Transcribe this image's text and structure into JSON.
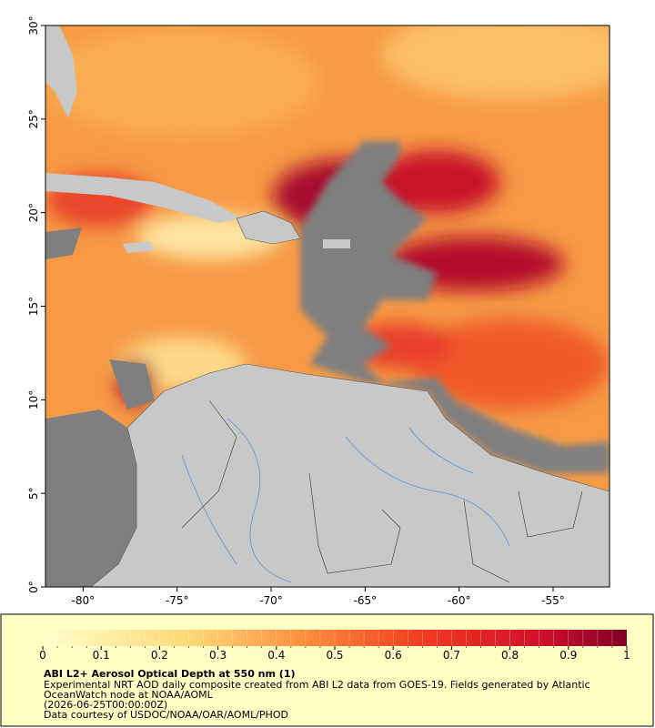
{
  "map": {
    "xlim": [
      -82,
      -52
    ],
    "ylim": [
      0,
      30
    ],
    "xticks": [
      {
        "value": -80,
        "label": "-80°"
      },
      {
        "value": -75,
        "label": "-75°"
      },
      {
        "value": -70,
        "label": "-70°"
      },
      {
        "value": -65,
        "label": "-65°"
      },
      {
        "value": -60,
        "label": "-60°"
      },
      {
        "value": -55,
        "label": "-55°"
      }
    ],
    "yticks": [
      {
        "value": 0,
        "label": "0°"
      },
      {
        "value": 5,
        "label": "5°"
      },
      {
        "value": 10,
        "label": "10°"
      },
      {
        "value": 15,
        "label": "15°"
      },
      {
        "value": 20,
        "label": "20°"
      },
      {
        "value": 25,
        "label": "25°"
      },
      {
        "value": 30,
        "label": "30°"
      }
    ]
  },
  "colorbar": {
    "range": [
      0,
      1
    ],
    "ticks": [
      0,
      0.1,
      0.2,
      0.3,
      0.4,
      0.5,
      0.6,
      0.7,
      0.8,
      0.9,
      1
    ]
  },
  "caption": {
    "title": "ABI L2+ Aerosol Optical Depth at 550 nm (1)",
    "lines": [
      "Experimental NRT AOD daily composite created from ABI L2 data from GOES-19. Fields generated by Atlantic",
      "OceanWatch node at NOAA/AOML",
      "(2026-06-25T00:00:00Z)",
      "Data courtesy of USDOC/NOAA/OAR/AOML/PHOD"
    ]
  }
}
